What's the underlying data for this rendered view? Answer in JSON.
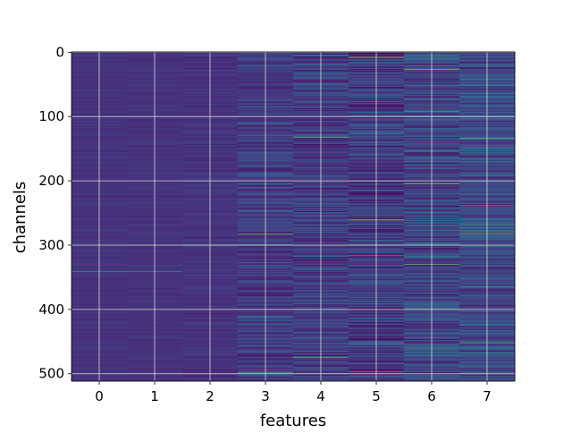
{
  "chart_data": {
    "type": "heatmap",
    "title": "",
    "xlabel": "features",
    "ylabel": "channels",
    "x_ticks": [
      0,
      1,
      2,
      3,
      4,
      5,
      6,
      7
    ],
    "y_ticks": [
      0,
      100,
      200,
      300,
      400,
      500
    ],
    "xlim": [
      -0.5,
      7.5
    ],
    "ylim": [
      511.5,
      -0.5
    ],
    "n_features": 8,
    "n_channels": 512,
    "grid": true,
    "colormap": "viridis",
    "column_mean_levels": [
      0.18,
      0.18,
      0.18,
      0.22,
      0.22,
      0.22,
      0.26,
      0.28
    ],
    "column_spread_levels": [
      0.03,
      0.03,
      0.05,
      0.14,
      0.16,
      0.18,
      0.2,
      0.2
    ],
    "bright_rows": [
      {
        "feature": 0,
        "channel": 341,
        "level": 0.62
      },
      {
        "feature": 1,
        "channel": 341,
        "level": 0.6
      },
      {
        "feature": 2,
        "channel": 300,
        "level": 0.55
      },
      {
        "feature": 3,
        "channel": 283,
        "level": 0.85
      },
      {
        "feature": 3,
        "channel": 498,
        "level": 0.75
      },
      {
        "feature": 4,
        "channel": 132,
        "level": 0.8
      },
      {
        "feature": 4,
        "channel": 475,
        "level": 0.8
      },
      {
        "feature": 5,
        "channel": 8,
        "level": 0.88
      },
      {
        "feature": 5,
        "channel": 261,
        "level": 0.9
      },
      {
        "feature": 5,
        "channel": 497,
        "level": 0.7
      },
      {
        "feature": 6,
        "channel": 27,
        "level": 0.92
      },
      {
        "feature": 6,
        "channel": 205,
        "level": 0.85
      },
      {
        "feature": 6,
        "channel": 330,
        "level": 0.8
      },
      {
        "feature": 7,
        "channel": 282,
        "level": 0.85
      },
      {
        "feature": 7,
        "channel": 452,
        "level": 0.8
      }
    ]
  }
}
